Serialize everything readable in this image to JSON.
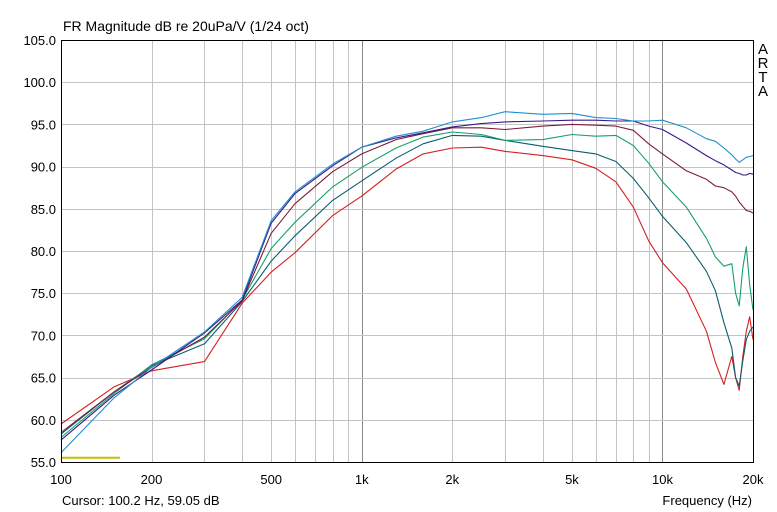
{
  "chart_data": {
    "type": "line",
    "title": "FR Magnitude dB re 20uPa/V (1/24 oct)",
    "xlabel": "Frequency (Hz)",
    "ylabel": "",
    "x_scale": "log",
    "xlim": [
      100,
      20000
    ],
    "ylim": [
      55,
      105
    ],
    "grid": true,
    "legend": "none",
    "x_tick_labels": [
      {
        "value": 100,
        "label": "100"
      },
      {
        "value": 200,
        "label": "200"
      },
      {
        "value": 500,
        "label": "500"
      },
      {
        "value": 1000,
        "label": "1k"
      },
      {
        "value": 2000,
        "label": "2k"
      },
      {
        "value": 5000,
        "label": "5k"
      },
      {
        "value": 10000,
        "label": "10k"
      },
      {
        "value": 20000,
        "label": "20k"
      }
    ],
    "y_ticks": [
      105,
      100,
      95,
      90,
      85,
      80,
      75,
      70,
      65,
      60,
      55
    ],
    "y_tick_labels": [
      "105.0",
      "100.0",
      "95.0",
      "90.0",
      "85.0",
      "80.0",
      "75.0",
      "70.0",
      "65.0",
      "60.0",
      "55.0"
    ],
    "x": [
      100,
      150,
      200,
      300,
      400,
      500,
      600,
      800,
      1000,
      1300,
      1600,
      2000,
      2500,
      3000,
      4000,
      5000,
      6000,
      7000,
      8000,
      9000,
      10000,
      12000,
      14000,
      15000,
      16000,
      17000,
      17500,
      18000,
      18500,
      19000,
      19500,
      20000
    ],
    "series": [
      {
        "color": "#d42020",
        "values": [
          59.5,
          63.9,
          65.8,
          66.9,
          73.8,
          77.5,
          79.8,
          84.2,
          86.5,
          89.7,
          91.5,
          92.2,
          92.3,
          91.8,
          91.3,
          90.8,
          89.8,
          88.2,
          85.2,
          81.2,
          78.6,
          75.5,
          70.5,
          66.8,
          64.2,
          67.5,
          65.0,
          63.5,
          67.5,
          70.5,
          72.2,
          69.5
        ]
      },
      {
        "color": "#0a5e6e",
        "values": [
          58.3,
          63.3,
          66.4,
          69.0,
          74.0,
          78.8,
          81.8,
          86.0,
          88.3,
          91.0,
          92.7,
          93.7,
          93.6,
          93.1,
          92.4,
          91.9,
          91.5,
          90.6,
          88.6,
          86.3,
          84.1,
          81.0,
          77.6,
          75.3,
          71.5,
          68.5,
          65.0,
          64.0,
          67.0,
          69.5,
          70.5,
          71.0
        ]
      },
      {
        "color": "#15a06a",
        "values": [
          57.9,
          63.1,
          66.5,
          69.6,
          74.2,
          80.3,
          83.4,
          87.6,
          89.9,
          92.2,
          93.5,
          94.1,
          93.8,
          93.1,
          93.2,
          93.8,
          93.6,
          93.7,
          92.5,
          90.4,
          88.2,
          85.2,
          81.5,
          79.3,
          78.2,
          78.5,
          75.0,
          73.5,
          78.0,
          80.5,
          76.0,
          73.0
        ]
      },
      {
        "color": "#7a1e3a",
        "values": [
          58.5,
          63.3,
          66.2,
          69.8,
          74.1,
          82.1,
          85.6,
          89.4,
          91.5,
          93.2,
          93.9,
          94.6,
          94.6,
          94.4,
          94.8,
          95.0,
          94.9,
          94.8,
          94.3,
          92.7,
          91.5,
          89.5,
          88.5,
          87.7,
          87.5,
          87.0,
          86.5,
          85.8,
          85.3,
          84.8,
          84.7,
          84.5
        ]
      },
      {
        "color": "#3a1a8a",
        "values": [
          57.6,
          62.9,
          65.9,
          70.3,
          74.2,
          83.3,
          86.8,
          90.1,
          92.3,
          93.4,
          94.0,
          94.7,
          95.1,
          95.3,
          95.4,
          95.5,
          95.5,
          95.4,
          95.4,
          94.8,
          94.4,
          92.8,
          91.3,
          90.7,
          90.2,
          89.6,
          89.3,
          89.2,
          89.0,
          89.0,
          89.2,
          89.1
        ]
      },
      {
        "color": "#1f8fd0",
        "values": [
          56.1,
          62.6,
          66.2,
          70.4,
          74.5,
          83.6,
          87.0,
          90.3,
          92.3,
          93.6,
          94.2,
          95.3,
          95.8,
          96.5,
          96.2,
          96.3,
          95.8,
          95.7,
          95.4,
          95.4,
          95.5,
          94.6,
          93.3,
          93.0,
          92.2,
          91.4,
          90.9,
          90.5,
          90.8,
          91.1,
          91.2,
          91.3
        ]
      }
    ],
    "marker": {
      "color": "#c0c000",
      "x": [
        100,
        157
      ],
      "y": 55.5
    },
    "cursor_text": "Cursor: 100.2 Hz, 59.05 dB",
    "brand_letters": [
      "A",
      "R",
      "T",
      "A"
    ]
  }
}
